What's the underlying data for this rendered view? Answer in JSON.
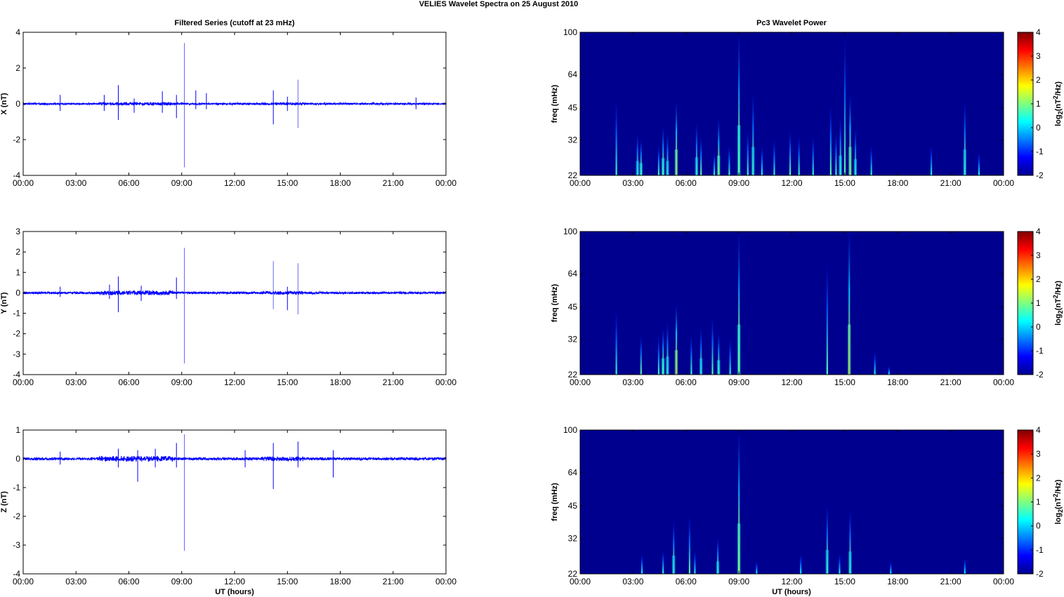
{
  "figure": {
    "suptitle": "VELIES Wavelet Spectra on 25 August    2010",
    "left_title": "Filtered Series (cutoff at 23 mHz)",
    "right_title": "Pc3 Wavelet Power",
    "xlabel": "UT (hours)"
  },
  "colors": {
    "trace": "#0000ff",
    "background": "#00008f"
  },
  "chart_data": [
    {
      "type": "line",
      "component": "X",
      "ylabel": "X (nT)",
      "ylim": [
        -4,
        4
      ],
      "yticks": [
        "-4",
        "-2",
        "0",
        "2",
        "4"
      ],
      "xlim_hours": [
        0,
        24
      ],
      "xticks": [
        "00:00",
        "03:00",
        "06:00",
        "09:00",
        "12:00",
        "15:00",
        "18:00",
        "21:00",
        "00:00"
      ],
      "noise_amplitude": 0.07,
      "spikes": [
        {
          "t": 2.1,
          "hi": 0.5,
          "lo": -0.4
        },
        {
          "t": 4.6,
          "hi": 0.5,
          "lo": -0.4
        },
        {
          "t": 5.4,
          "hi": 1.05,
          "lo": -0.9
        },
        {
          "t": 6.3,
          "hi": 0.3,
          "lo": -0.5
        },
        {
          "t": 7.9,
          "hi": 0.7,
          "lo": -0.5
        },
        {
          "t": 8.7,
          "hi": 0.5,
          "lo": -0.8
        },
        {
          "t": 9.15,
          "hi": 3.4,
          "lo": -3.55
        },
        {
          "t": 9.8,
          "hi": 0.75,
          "lo": -0.3
        },
        {
          "t": 10.4,
          "hi": 0.6,
          "lo": -0.3
        },
        {
          "t": 14.2,
          "hi": 0.75,
          "lo": -1.15
        },
        {
          "t": 15.0,
          "hi": 0.4,
          "lo": -0.4
        },
        {
          "t": 15.6,
          "hi": 1.35,
          "lo": -1.35
        },
        {
          "t": 22.3,
          "hi": 0.35,
          "lo": -0.3
        }
      ]
    },
    {
      "type": "line",
      "component": "Y",
      "ylabel": "Y (nT)",
      "ylim": [
        -4,
        3
      ],
      "yticks": [
        "-4",
        "-3",
        "-2",
        "-1",
        "0",
        "1",
        "2",
        "3"
      ],
      "xlim_hours": [
        0,
        24
      ],
      "xticks": [
        "00:00",
        "03:00",
        "06:00",
        "09:00",
        "12:00",
        "15:00",
        "18:00",
        "21:00",
        "00:00"
      ],
      "noise_amplitude": 0.08,
      "spikes": [
        {
          "t": 2.1,
          "hi": 0.3,
          "lo": -0.2
        },
        {
          "t": 4.9,
          "hi": 0.4,
          "lo": -0.3
        },
        {
          "t": 5.4,
          "hi": 0.8,
          "lo": -0.95
        },
        {
          "t": 6.7,
          "hi": 0.35,
          "lo": -0.4
        },
        {
          "t": 8.7,
          "hi": 0.75,
          "lo": -0.3
        },
        {
          "t": 9.15,
          "hi": 2.2,
          "lo": -3.45
        },
        {
          "t": 14.2,
          "hi": 1.55,
          "lo": -0.8
        },
        {
          "t": 15.0,
          "hi": 0.3,
          "lo": -0.85
        },
        {
          "t": 15.6,
          "hi": 1.45,
          "lo": -1.05
        }
      ]
    },
    {
      "type": "line",
      "component": "Z",
      "ylabel": "Z (nT)",
      "ylim": [
        -4,
        1
      ],
      "yticks": [
        "-4",
        "-3",
        "-2",
        "-1",
        "0",
        "1"
      ],
      "xlim_hours": [
        0,
        24
      ],
      "xticks": [
        "00:00",
        "03:00",
        "06:00",
        "09:00",
        "12:00",
        "15:00",
        "18:00",
        "21:00",
        "00:00"
      ],
      "noise_amplitude": 0.07,
      "spikes": [
        {
          "t": 2.1,
          "hi": 0.25,
          "lo": -0.2
        },
        {
          "t": 5.4,
          "hi": 0.35,
          "lo": -0.3
        },
        {
          "t": 6.5,
          "hi": 0.3,
          "lo": -0.8
        },
        {
          "t": 7.5,
          "hi": 0.35,
          "lo": -0.3
        },
        {
          "t": 8.7,
          "hi": 0.55,
          "lo": -0.3
        },
        {
          "t": 9.15,
          "hi": 0.85,
          "lo": -3.2
        },
        {
          "t": 12.6,
          "hi": 0.3,
          "lo": -0.3
        },
        {
          "t": 14.2,
          "hi": 0.55,
          "lo": -1.05
        },
        {
          "t": 15.6,
          "hi": 0.6,
          "lo": -0.3
        },
        {
          "t": 17.6,
          "hi": 0.3,
          "lo": -0.65
        }
      ]
    },
    {
      "type": "heatmap",
      "component": "X",
      "ylabel": "freq (mHz)",
      "yscale": "log",
      "ylim_mHz": [
        22,
        100
      ],
      "yticks": [
        "22",
        "32",
        "45",
        "64",
        "100"
      ],
      "xlim_hours": [
        0,
        24
      ],
      "xticks": [
        "00:00",
        "03:00",
        "06:00",
        "09:00",
        "12:00",
        "15:00",
        "18:00",
        "21:00",
        "00:00"
      ],
      "colorbar": {
        "label_base": "log",
        "label_sub": "2",
        "label_mid": "(nT",
        "label_sup": "2",
        "label_end": "/Hz)",
        "range": [
          -2,
          4
        ],
        "ticks": [
          "-2",
          "-1",
          "0",
          "1",
          "2",
          "3",
          "4"
        ]
      },
      "streaks": [
        {
          "t": 2.05,
          "f": 48,
          "p": 0.6
        },
        {
          "t": 3.25,
          "f": 34,
          "p": 0.9
        },
        {
          "t": 3.45,
          "f": 32,
          "p": 1.2
        },
        {
          "t": 4.45,
          "f": 30,
          "p": 0.7
        },
        {
          "t": 4.7,
          "f": 37,
          "p": 1.2
        },
        {
          "t": 4.95,
          "f": 34,
          "p": 0.9
        },
        {
          "t": 5.45,
          "f": 48,
          "p": 2.2
        },
        {
          "t": 6.6,
          "f": 38,
          "p": 1.0
        },
        {
          "t": 6.85,
          "f": 33,
          "p": 0.8
        },
        {
          "t": 7.6,
          "f": 28,
          "p": 0.5
        },
        {
          "t": 7.85,
          "f": 40,
          "p": 1.8
        },
        {
          "t": 8.45,
          "f": 30,
          "p": 0.6
        },
        {
          "t": 9.0,
          "f": 100,
          "p": 1.5
        },
        {
          "t": 9.5,
          "f": 35,
          "p": 0.6
        },
        {
          "t": 9.8,
          "f": 52,
          "p": 1.0
        },
        {
          "t": 10.3,
          "f": 30,
          "p": 0.4
        },
        {
          "t": 11.0,
          "f": 32,
          "p": 0.5
        },
        {
          "t": 11.9,
          "f": 35,
          "p": 0.8
        },
        {
          "t": 12.4,
          "f": 33,
          "p": 0.6
        },
        {
          "t": 13.2,
          "f": 33,
          "p": 0.5
        },
        {
          "t": 14.2,
          "f": 45,
          "p": 0.8
        },
        {
          "t": 14.5,
          "f": 34,
          "p": 0.6
        },
        {
          "t": 14.75,
          "f": 40,
          "p": 1.1
        },
        {
          "t": 15.0,
          "f": 92,
          "p": 0.8
        },
        {
          "t": 15.3,
          "f": 52,
          "p": 2.0
        },
        {
          "t": 15.6,
          "f": 36,
          "p": 0.9
        },
        {
          "t": 16.5,
          "f": 30,
          "p": 0.5
        },
        {
          "t": 19.9,
          "f": 30,
          "p": 0.4
        },
        {
          "t": 21.8,
          "f": 48,
          "p": 1.0
        },
        {
          "t": 22.6,
          "f": 28,
          "p": 0.4
        }
      ]
    },
    {
      "type": "heatmap",
      "component": "Y",
      "ylabel": "freq (mHz)",
      "yscale": "log",
      "ylim_mHz": [
        22,
        100
      ],
      "yticks": [
        "22",
        "32",
        "45",
        "64",
        "100"
      ],
      "xlim_hours": [
        0,
        24
      ],
      "xticks": [
        "00:00",
        "03:00",
        "06:00",
        "09:00",
        "12:00",
        "15:00",
        "18:00",
        "21:00",
        "00:00"
      ],
      "colorbar": {
        "label_base": "log",
        "label_sub": "2",
        "label_mid": "(nT",
        "label_sup": "2",
        "label_end": "/Hz)",
        "range": [
          -2,
          4
        ],
        "ticks": [
          "-2",
          "-1",
          "0",
          "1",
          "2",
          "3",
          "4"
        ]
      },
      "streaks": [
        {
          "t": 2.05,
          "f": 43,
          "p": 0.5
        },
        {
          "t": 3.45,
          "f": 33,
          "p": 0.8
        },
        {
          "t": 4.45,
          "f": 33,
          "p": 0.6
        },
        {
          "t": 4.7,
          "f": 36,
          "p": 1.3
        },
        {
          "t": 4.95,
          "f": 38,
          "p": 1.0
        },
        {
          "t": 5.45,
          "f": 46,
          "p": 2.5
        },
        {
          "t": 6.3,
          "f": 33,
          "p": 0.6
        },
        {
          "t": 6.85,
          "f": 36,
          "p": 0.9
        },
        {
          "t": 7.5,
          "f": 40,
          "p": 0.8
        },
        {
          "t": 7.85,
          "f": 34,
          "p": 1.2
        },
        {
          "t": 8.5,
          "f": 32,
          "p": 0.5
        },
        {
          "t": 9.0,
          "f": 100,
          "p": 1.6
        },
        {
          "t": 14.0,
          "f": 70,
          "p": 0.7
        },
        {
          "t": 15.25,
          "f": 100,
          "p": 2.3
        },
        {
          "t": 16.7,
          "f": 28,
          "p": 0.4
        },
        {
          "t": 17.5,
          "f": 24,
          "p": 0.3
        }
      ]
    },
    {
      "type": "heatmap",
      "component": "Z",
      "ylabel": "freq (mHz)",
      "yscale": "log",
      "ylim_mHz": [
        22,
        100
      ],
      "yticks": [
        "22",
        "32",
        "45",
        "64",
        "100"
      ],
      "xlim_hours": [
        0,
        24
      ],
      "xticks": [
        "00:00",
        "03:00",
        "06:00",
        "09:00",
        "12:00",
        "15:00",
        "18:00",
        "21:00",
        "00:00"
      ],
      "colorbar": {
        "label_base": "log",
        "label_sub": "2",
        "label_mid": "(nT",
        "label_sup": "2",
        "label_end": "/Hz)",
        "range": [
          -2,
          4
        ],
        "ticks": [
          "-2",
          "-1",
          "0",
          "1",
          "2",
          "3",
          "4"
        ]
      },
      "streaks": [
        {
          "t": 3.5,
          "f": 27,
          "p": 0.4
        },
        {
          "t": 4.7,
          "f": 28,
          "p": 0.5
        },
        {
          "t": 5.3,
          "f": 38,
          "p": 1.0
        },
        {
          "t": 6.2,
          "f": 40,
          "p": 0.8
        },
        {
          "t": 6.5,
          "f": 28,
          "p": 0.4
        },
        {
          "t": 7.8,
          "f": 32,
          "p": 1.0
        },
        {
          "t": 9.0,
          "f": 100,
          "p": 1.8
        },
        {
          "t": 10.0,
          "f": 25,
          "p": 0.3
        },
        {
          "t": 12.5,
          "f": 27,
          "p": 0.3
        },
        {
          "t": 14.0,
          "f": 45,
          "p": 1.0
        },
        {
          "t": 14.7,
          "f": 27,
          "p": 0.4
        },
        {
          "t": 15.3,
          "f": 43,
          "p": 1.1
        },
        {
          "t": 17.6,
          "f": 25,
          "p": 0.3
        },
        {
          "t": 21.8,
          "f": 26,
          "p": 0.3
        }
      ]
    }
  ]
}
